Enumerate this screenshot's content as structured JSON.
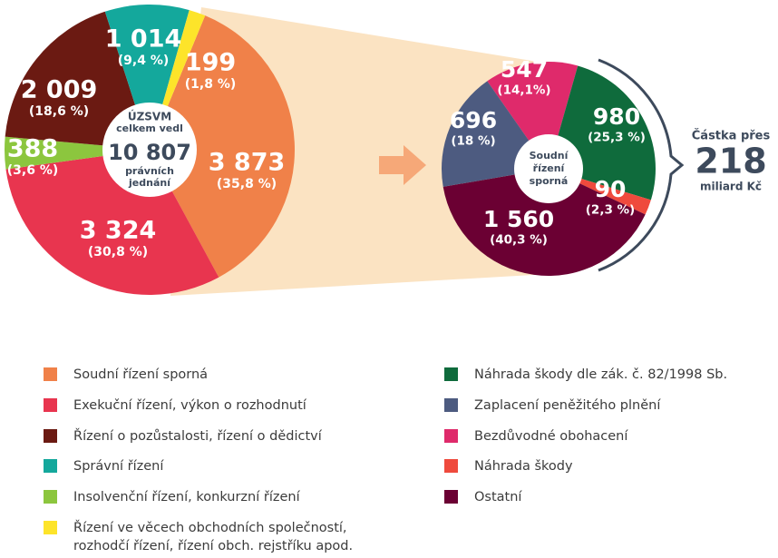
{
  "chart_data": [
    {
      "type": "pie",
      "center_top": [
        "ÚZSVM",
        "celkem vedl"
      ],
      "total": 10807,
      "total_label": "10 807",
      "center_bottom": [
        "právních",
        "jednání"
      ],
      "categories": [
        "Soudní řízení sporná",
        "Exekuční řízení, výkon o rozhodnutí",
        "Řízení o pozůstalosti, řízení o dědictví",
        "Správní řízení",
        "Insolvenční řízení, konkurzní řízení",
        "Řízení ve věcech obchodních společností,\nrozhodčí řízení, řízení obch. rejstříku apod."
      ],
      "values": [
        3873,
        3324,
        2009,
        1014,
        388,
        199
      ],
      "value_labels": [
        "3 873",
        "3 324",
        "2 009",
        "1 014",
        "388",
        "199"
      ],
      "percents": [
        35.8,
        30.8,
        18.6,
        9.4,
        3.6,
        1.8
      ],
      "percent_labels": [
        "(35,8 %)",
        "(30,8 %)",
        "(18,6 %)",
        "(9,4 %)",
        "(3,6 %)",
        "(1,8 %)"
      ],
      "colors": [
        "#f08149",
        "#e8354f",
        "#6b1a12",
        "#14a89c",
        "#8cc63e",
        "#fde42a"
      ]
    },
    {
      "type": "pie",
      "center_top": [
        "Soudní",
        "řízení",
        "sporná"
      ],
      "categories": [
        "Náhrada škody dle zák. č. 82/1998 Sb.",
        "Zaplacení peněžitého plnění",
        "Bezdůvodné obohacení",
        "Náhrada škody",
        "Ostatní"
      ],
      "values": [
        980,
        696,
        547,
        90,
        1560
      ],
      "value_labels": [
        "980",
        "696",
        "547",
        "90",
        "1 560"
      ],
      "percents": [
        25.3,
        18,
        14.1,
        2.3,
        40.3
      ],
      "percent_labels": [
        "(25,3 %)",
        "(18 %)",
        "(14,1%)",
        "(2,3 %)",
        "(40,3 %)"
      ],
      "colors": [
        "#0f6b3c",
        "#4d5b80",
        "#df2a6b",
        "#ef4a3d",
        "#6b0033"
      ],
      "annotation": {
        "prefix": "Částka přes",
        "amount": 218,
        "unit": "miliard Kč"
      }
    }
  ]
}
